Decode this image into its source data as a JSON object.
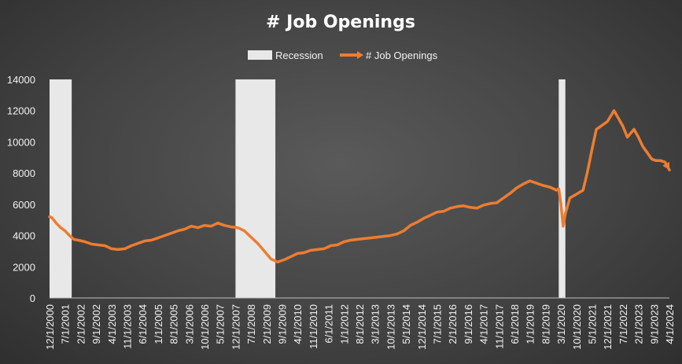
{
  "chart_data": {
    "type": "line",
    "title": "# Job Openings",
    "legend": {
      "placement": "top-center",
      "entries": [
        "Recession",
        "# Job Openings"
      ]
    },
    "colors": {
      "series": "#ed7d31",
      "recession": "#e8e8e8",
      "background": "#444444",
      "text": "#f2f2f2"
    },
    "ylim": [
      0,
      14000
    ],
    "y_ticks": [
      0,
      2000,
      4000,
      6000,
      8000,
      10000,
      12000,
      14000
    ],
    "x_range": [
      "2000-12-01",
      "2024-04-01"
    ],
    "x_tick_labels": [
      "12/1/2000",
      "7/1/2001",
      "2/1/2002",
      "9/1/2002",
      "4/1/2003",
      "11/1/2003",
      "6/1/2004",
      "1/1/2005",
      "8/1/2005",
      "3/1/2006",
      "10/1/2006",
      "5/1/2007",
      "12/1/2007",
      "7/1/2008",
      "2/1/2009",
      "9/1/2009",
      "4/1/2010",
      "11/1/2010",
      "6/1/2011",
      "1/1/2012",
      "8/1/2012",
      "3/1/2013",
      "10/1/2013",
      "5/1/2014",
      "12/1/2014",
      "7/1/2015",
      "2/1/2016",
      "9/1/2016",
      "4/1/2017",
      "11/1/2017",
      "6/1/2018",
      "1/1/2019",
      "8/1/2019",
      "3/1/2020",
      "10/1/2020",
      "5/1/2021",
      "12/1/2021",
      "7/1/2022",
      "2/1/2023",
      "9/1/2023",
      "4/1/2024"
    ],
    "recessions": [
      {
        "start": "2000-12-01",
        "end": "2001-10-01"
      },
      {
        "start": "2007-12-01",
        "end": "2009-06-01"
      },
      {
        "start": "2020-02-01",
        "end": "2020-05-01"
      }
    ],
    "series": [
      {
        "name": "# Job Openings",
        "points": [
          [
            "2000-12-01",
            5200
          ],
          [
            "2001-01-01",
            5150
          ],
          [
            "2001-03-01",
            4800
          ],
          [
            "2001-05-01",
            4500
          ],
          [
            "2001-07-01",
            4300
          ],
          [
            "2001-09-01",
            4000
          ],
          [
            "2001-11-01",
            3750
          ],
          [
            "2002-01-01",
            3700
          ],
          [
            "2002-04-01",
            3600
          ],
          [
            "2002-07-01",
            3450
          ],
          [
            "2002-10-01",
            3400
          ],
          [
            "2003-01-01",
            3350
          ],
          [
            "2003-04-01",
            3150
          ],
          [
            "2003-07-01",
            3100
          ],
          [
            "2003-10-01",
            3150
          ],
          [
            "2004-01-01",
            3350
          ],
          [
            "2004-04-01",
            3500
          ],
          [
            "2004-07-01",
            3650
          ],
          [
            "2004-10-01",
            3700
          ],
          [
            "2005-01-01",
            3850
          ],
          [
            "2005-04-01",
            4000
          ],
          [
            "2005-07-01",
            4150
          ],
          [
            "2005-10-01",
            4300
          ],
          [
            "2006-01-01",
            4400
          ],
          [
            "2006-04-01",
            4600
          ],
          [
            "2006-07-01",
            4500
          ],
          [
            "2006-10-01",
            4650
          ],
          [
            "2007-01-01",
            4600
          ],
          [
            "2007-04-01",
            4800
          ],
          [
            "2007-07-01",
            4650
          ],
          [
            "2007-10-01",
            4550
          ],
          [
            "2008-01-01",
            4500
          ],
          [
            "2008-04-01",
            4300
          ],
          [
            "2008-07-01",
            3900
          ],
          [
            "2008-10-01",
            3500
          ],
          [
            "2009-01-01",
            3000
          ],
          [
            "2009-04-01",
            2500
          ],
          [
            "2009-07-01",
            2300
          ],
          [
            "2009-10-01",
            2450
          ],
          [
            "2010-01-01",
            2650
          ],
          [
            "2010-04-01",
            2850
          ],
          [
            "2010-07-01",
            2900
          ],
          [
            "2010-10-01",
            3050
          ],
          [
            "2011-01-01",
            3100
          ],
          [
            "2011-04-01",
            3150
          ],
          [
            "2011-07-01",
            3350
          ],
          [
            "2011-10-01",
            3400
          ],
          [
            "2012-01-01",
            3600
          ],
          [
            "2012-04-01",
            3700
          ],
          [
            "2012-07-01",
            3750
          ],
          [
            "2012-10-01",
            3800
          ],
          [
            "2013-01-01",
            3850
          ],
          [
            "2013-04-01",
            3900
          ],
          [
            "2013-07-01",
            3950
          ],
          [
            "2013-10-01",
            4000
          ],
          [
            "2014-01-01",
            4100
          ],
          [
            "2014-04-01",
            4300
          ],
          [
            "2014-07-01",
            4650
          ],
          [
            "2014-10-01",
            4850
          ],
          [
            "2015-01-01",
            5100
          ],
          [
            "2015-04-01",
            5300
          ],
          [
            "2015-07-01",
            5500
          ],
          [
            "2015-10-01",
            5550
          ],
          [
            "2016-01-01",
            5750
          ],
          [
            "2016-04-01",
            5850
          ],
          [
            "2016-07-01",
            5900
          ],
          [
            "2016-10-01",
            5800
          ],
          [
            "2017-01-01",
            5750
          ],
          [
            "2017-04-01",
            5950
          ],
          [
            "2017-07-01",
            6050
          ],
          [
            "2017-10-01",
            6100
          ],
          [
            "2018-01-01",
            6400
          ],
          [
            "2018-04-01",
            6700
          ],
          [
            "2018-07-01",
            7050
          ],
          [
            "2018-10-01",
            7300
          ],
          [
            "2019-01-01",
            7500
          ],
          [
            "2019-04-01",
            7350
          ],
          [
            "2019-07-01",
            7200
          ],
          [
            "2019-10-01",
            7100
          ],
          [
            "2020-01-01",
            6900
          ],
          [
            "2020-02-01",
            7000
          ],
          [
            "2020-03-01",
            6000
          ],
          [
            "2020-04-01",
            4600
          ],
          [
            "2020-05-01",
            5400
          ],
          [
            "2020-07-01",
            6400
          ],
          [
            "2020-10-01",
            6650
          ],
          [
            "2021-01-01",
            6900
          ],
          [
            "2021-03-01",
            8100
          ],
          [
            "2021-05-01",
            9500
          ],
          [
            "2021-07-01",
            10800
          ],
          [
            "2021-09-01",
            11000
          ],
          [
            "2021-12-01",
            11300
          ],
          [
            "2022-03-01",
            12000
          ],
          [
            "2022-05-01",
            11500
          ],
          [
            "2022-07-01",
            11000
          ],
          [
            "2022-09-01",
            10300
          ],
          [
            "2022-12-01",
            10800
          ],
          [
            "2023-02-01",
            10300
          ],
          [
            "2023-04-01",
            9700
          ],
          [
            "2023-06-01",
            9300
          ],
          [
            "2023-08-01",
            8900
          ],
          [
            "2023-10-01",
            8800
          ],
          [
            "2023-12-01",
            8800
          ],
          [
            "2024-02-01",
            8700
          ],
          [
            "2024-04-01",
            8200
          ]
        ]
      }
    ]
  }
}
